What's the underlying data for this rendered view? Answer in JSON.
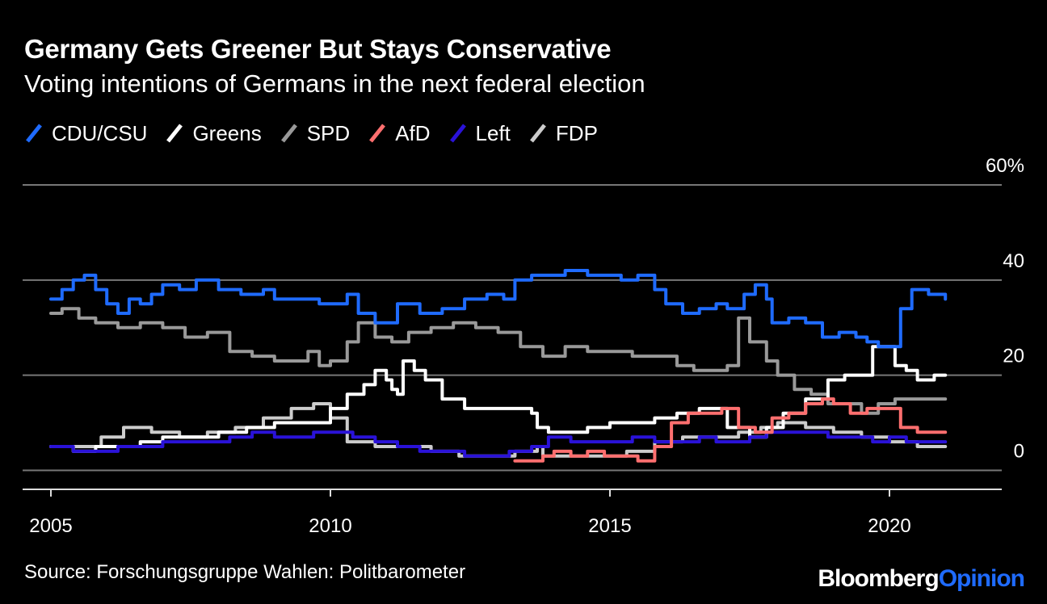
{
  "header": {
    "title": "Germany Gets Greener But Stays Conservative",
    "subtitle": "Voting intentions of Germans in the next federal election"
  },
  "legend": [
    {
      "label": "CDU/CSU",
      "color": "#1f6bff"
    },
    {
      "label": "Greens",
      "color": "#ffffff"
    },
    {
      "label": "SPD",
      "color": "#999999"
    },
    {
      "label": "AfD",
      "color": "#ff6f6f"
    },
    {
      "label": "Left",
      "color": "#2a12d8"
    },
    {
      "label": "FDP",
      "color": "#cccccc"
    }
  ],
  "footer": {
    "source": "Source: Forschungsgruppe Wahlen: Politbarometer",
    "logo_part1": "Bloomberg",
    "logo_part2": "Opinion"
  },
  "chart_data": {
    "type": "line",
    "title": "Germany Gets Greener But Stays Conservative",
    "subtitle": "Voting intentions of Germans in the next federal election",
    "xlabel": "",
    "ylabel": "",
    "xlim": [
      2005,
      2021.6
    ],
    "ylim": [
      -4,
      60
    ],
    "x_ticks": [
      {
        "value": 2005,
        "label": "2005"
      },
      {
        "value": 2010,
        "label": "2010"
      },
      {
        "value": 2015,
        "label": "2015"
      },
      {
        "value": 2020,
        "label": "2020"
      }
    ],
    "y_ticks": [
      {
        "value": 60,
        "label": "60%"
      },
      {
        "value": 40,
        "label": "40"
      },
      {
        "value": 20,
        "label": "20"
      },
      {
        "value": 0,
        "label": "0"
      }
    ],
    "grid": true,
    "legend_position": "top-left",
    "series": [
      {
        "name": "FDP",
        "color": "#cccccc",
        "points": [
          [
            2005.0,
            5
          ],
          [
            2005.5,
            5
          ],
          [
            2005.9,
            7
          ],
          [
            2006.3,
            9
          ],
          [
            2006.8,
            8
          ],
          [
            2007.3,
            7
          ],
          [
            2007.8,
            8
          ],
          [
            2008.3,
            9
          ],
          [
            2008.8,
            11
          ],
          [
            2009.3,
            13
          ],
          [
            2009.7,
            14
          ],
          [
            2010.0,
            11
          ],
          [
            2010.3,
            6
          ],
          [
            2010.8,
            5
          ],
          [
            2011.3,
            5
          ],
          [
            2011.8,
            4
          ],
          [
            2012.3,
            3
          ],
          [
            2012.8,
            3
          ],
          [
            2013.3,
            4
          ],
          [
            2013.7,
            5
          ],
          [
            2013.8,
            3
          ],
          [
            2014.3,
            3
          ],
          [
            2014.8,
            3
          ],
          [
            2015.3,
            4
          ],
          [
            2015.8,
            6
          ],
          [
            2016.3,
            7
          ],
          [
            2016.8,
            7
          ],
          [
            2017.3,
            8
          ],
          [
            2017.7,
            9
          ],
          [
            2018.0,
            10
          ],
          [
            2018.5,
            9
          ],
          [
            2019.0,
            8
          ],
          [
            2019.5,
            7
          ],
          [
            2020.0,
            6
          ],
          [
            2020.5,
            5
          ],
          [
            2021.0,
            5
          ]
        ]
      },
      {
        "name": "SPD",
        "color": "#999999",
        "points": [
          [
            2005.0,
            33
          ],
          [
            2005.2,
            34
          ],
          [
            2005.5,
            32
          ],
          [
            2005.8,
            31
          ],
          [
            2006.2,
            30
          ],
          [
            2006.6,
            31
          ],
          [
            2007.0,
            30
          ],
          [
            2007.4,
            28
          ],
          [
            2007.8,
            29
          ],
          [
            2008.2,
            25
          ],
          [
            2008.6,
            24
          ],
          [
            2009.0,
            23
          ],
          [
            2009.4,
            23
          ],
          [
            2009.6,
            25
          ],
          [
            2009.8,
            22
          ],
          [
            2010.0,
            23
          ],
          [
            2010.3,
            27
          ],
          [
            2010.5,
            31
          ],
          [
            2010.8,
            28
          ],
          [
            2011.1,
            27
          ],
          [
            2011.4,
            29
          ],
          [
            2011.8,
            30
          ],
          [
            2012.2,
            31
          ],
          [
            2012.6,
            30
          ],
          [
            2013.0,
            29
          ],
          [
            2013.4,
            26
          ],
          [
            2013.8,
            24
          ],
          [
            2014.2,
            26
          ],
          [
            2014.6,
            25
          ],
          [
            2015.0,
            25
          ],
          [
            2015.4,
            24
          ],
          [
            2015.8,
            24
          ],
          [
            2016.2,
            22
          ],
          [
            2016.5,
            21
          ],
          [
            2016.8,
            21
          ],
          [
            2017.1,
            22
          ],
          [
            2017.3,
            32
          ],
          [
            2017.5,
            27
          ],
          [
            2017.8,
            23
          ],
          [
            2018.0,
            20
          ],
          [
            2018.3,
            17
          ],
          [
            2018.6,
            16
          ],
          [
            2018.9,
            14
          ],
          [
            2019.2,
            14
          ],
          [
            2019.5,
            12
          ],
          [
            2019.8,
            14
          ],
          [
            2020.1,
            15
          ],
          [
            2020.4,
            15
          ],
          [
            2020.7,
            15
          ],
          [
            2021.0,
            15
          ]
        ]
      },
      {
        "name": "Greens",
        "color": "#ffffff",
        "points": [
          [
            2005.0,
            5
          ],
          [
            2005.4,
            4
          ],
          [
            2005.8,
            5
          ],
          [
            2006.2,
            5
          ],
          [
            2006.6,
            6
          ],
          [
            2007.0,
            7
          ],
          [
            2007.5,
            7
          ],
          [
            2008.0,
            8
          ],
          [
            2008.5,
            9
          ],
          [
            2009.0,
            10
          ],
          [
            2009.5,
            10
          ],
          [
            2010.0,
            13
          ],
          [
            2010.3,
            16
          ],
          [
            2010.6,
            18
          ],
          [
            2010.8,
            21
          ],
          [
            2011.0,
            19
          ],
          [
            2011.1,
            17
          ],
          [
            2011.2,
            16
          ],
          [
            2011.3,
            23
          ],
          [
            2011.5,
            21
          ],
          [
            2011.7,
            19
          ],
          [
            2012.0,
            15
          ],
          [
            2012.4,
            13
          ],
          [
            2012.8,
            13
          ],
          [
            2013.2,
            13
          ],
          [
            2013.6,
            12
          ],
          [
            2013.7,
            9
          ],
          [
            2013.9,
            8
          ],
          [
            2014.2,
            8
          ],
          [
            2014.6,
            9
          ],
          [
            2015.0,
            10
          ],
          [
            2015.4,
            10
          ],
          [
            2015.8,
            11
          ],
          [
            2016.2,
            12
          ],
          [
            2016.6,
            13
          ],
          [
            2016.9,
            13
          ],
          [
            2017.1,
            9
          ],
          [
            2017.5,
            7
          ],
          [
            2017.8,
            9
          ],
          [
            2018.1,
            12
          ],
          [
            2018.5,
            15
          ],
          [
            2018.9,
            19
          ],
          [
            2019.2,
            20
          ],
          [
            2019.5,
            20
          ],
          [
            2019.7,
            26
          ],
          [
            2019.9,
            26
          ],
          [
            2020.1,
            22
          ],
          [
            2020.3,
            21
          ],
          [
            2020.5,
            19
          ],
          [
            2020.8,
            20
          ],
          [
            2021.0,
            20
          ]
        ]
      },
      {
        "name": "Left",
        "color": "#2a12d8",
        "points": [
          [
            2005.0,
            5
          ],
          [
            2005.4,
            4
          ],
          [
            2005.8,
            4
          ],
          [
            2006.2,
            5
          ],
          [
            2006.6,
            5
          ],
          [
            2007.0,
            6
          ],
          [
            2007.4,
            6
          ],
          [
            2007.8,
            6
          ],
          [
            2008.2,
            7
          ],
          [
            2008.6,
            8
          ],
          [
            2009.0,
            7
          ],
          [
            2009.4,
            7
          ],
          [
            2009.7,
            8
          ],
          [
            2010.0,
            8
          ],
          [
            2010.4,
            7
          ],
          [
            2010.8,
            6
          ],
          [
            2011.2,
            5
          ],
          [
            2011.6,
            4
          ],
          [
            2012.0,
            4
          ],
          [
            2012.4,
            3
          ],
          [
            2012.8,
            3
          ],
          [
            2013.2,
            4
          ],
          [
            2013.6,
            5
          ],
          [
            2013.9,
            7
          ],
          [
            2014.3,
            6
          ],
          [
            2014.7,
            6
          ],
          [
            2015.0,
            6
          ],
          [
            2015.4,
            7
          ],
          [
            2015.8,
            6
          ],
          [
            2016.2,
            6
          ],
          [
            2016.6,
            7
          ],
          [
            2016.9,
            6
          ],
          [
            2017.2,
            6
          ],
          [
            2017.5,
            7
          ],
          [
            2017.8,
            8
          ],
          [
            2018.1,
            8
          ],
          [
            2018.5,
            8
          ],
          [
            2018.9,
            7
          ],
          [
            2019.3,
            7
          ],
          [
            2019.7,
            6
          ],
          [
            2020.0,
            7
          ],
          [
            2020.3,
            6
          ],
          [
            2020.6,
            6
          ],
          [
            2021.0,
            6
          ]
        ]
      },
      {
        "name": "AfD",
        "color": "#ff6f6f",
        "points": [
          [
            2013.3,
            2
          ],
          [
            2013.6,
            2
          ],
          [
            2013.8,
            3
          ],
          [
            2014.0,
            4
          ],
          [
            2014.3,
            3
          ],
          [
            2014.6,
            4
          ],
          [
            2014.9,
            3
          ],
          [
            2015.2,
            3
          ],
          [
            2015.5,
            2
          ],
          [
            2015.8,
            5
          ],
          [
            2016.1,
            10
          ],
          [
            2016.4,
            12
          ],
          [
            2016.8,
            12
          ],
          [
            2017.0,
            13
          ],
          [
            2017.3,
            9
          ],
          [
            2017.6,
            8
          ],
          [
            2017.9,
            11
          ],
          [
            2018.2,
            12
          ],
          [
            2018.5,
            14
          ],
          [
            2018.8,
            15
          ],
          [
            2019.0,
            14
          ],
          [
            2019.3,
            12
          ],
          [
            2019.6,
            13
          ],
          [
            2019.9,
            13
          ],
          [
            2020.2,
            9
          ],
          [
            2020.5,
            8
          ],
          [
            2020.8,
            8
          ],
          [
            2021.0,
            8
          ]
        ]
      },
      {
        "name": "CDU/CSU",
        "color": "#1f6bff",
        "points": [
          [
            2005.0,
            36
          ],
          [
            2005.2,
            38
          ],
          [
            2005.4,
            40
          ],
          [
            2005.6,
            41
          ],
          [
            2005.8,
            38
          ],
          [
            2006.0,
            35
          ],
          [
            2006.2,
            33
          ],
          [
            2006.4,
            36
          ],
          [
            2006.6,
            35
          ],
          [
            2006.8,
            37
          ],
          [
            2007.0,
            39
          ],
          [
            2007.3,
            38
          ],
          [
            2007.6,
            40
          ],
          [
            2008.0,
            38
          ],
          [
            2008.4,
            37
          ],
          [
            2008.8,
            38
          ],
          [
            2009.0,
            36
          ],
          [
            2009.4,
            36
          ],
          [
            2009.8,
            35
          ],
          [
            2010.0,
            35
          ],
          [
            2010.3,
            37
          ],
          [
            2010.5,
            33
          ],
          [
            2010.8,
            31
          ],
          [
            2011.2,
            35
          ],
          [
            2011.6,
            33
          ],
          [
            2012.0,
            34
          ],
          [
            2012.4,
            36
          ],
          [
            2012.8,
            37
          ],
          [
            2013.1,
            36
          ],
          [
            2013.3,
            40
          ],
          [
            2013.6,
            41
          ],
          [
            2013.9,
            41
          ],
          [
            2014.2,
            42
          ],
          [
            2014.6,
            41
          ],
          [
            2014.9,
            41
          ],
          [
            2015.2,
            40
          ],
          [
            2015.5,
            41
          ],
          [
            2015.8,
            38
          ],
          [
            2016.0,
            35
          ],
          [
            2016.3,
            33
          ],
          [
            2016.6,
            34
          ],
          [
            2016.9,
            35
          ],
          [
            2017.1,
            34
          ],
          [
            2017.4,
            37
          ],
          [
            2017.6,
            39
          ],
          [
            2017.8,
            36
          ],
          [
            2017.9,
            31
          ],
          [
            2018.2,
            32
          ],
          [
            2018.5,
            31
          ],
          [
            2018.8,
            28
          ],
          [
            2019.1,
            29
          ],
          [
            2019.4,
            28
          ],
          [
            2019.6,
            27
          ],
          [
            2019.8,
            26
          ],
          [
            2020.0,
            26
          ],
          [
            2020.2,
            34
          ],
          [
            2020.4,
            38
          ],
          [
            2020.7,
            37
          ],
          [
            2021.0,
            36
          ]
        ]
      }
    ]
  }
}
